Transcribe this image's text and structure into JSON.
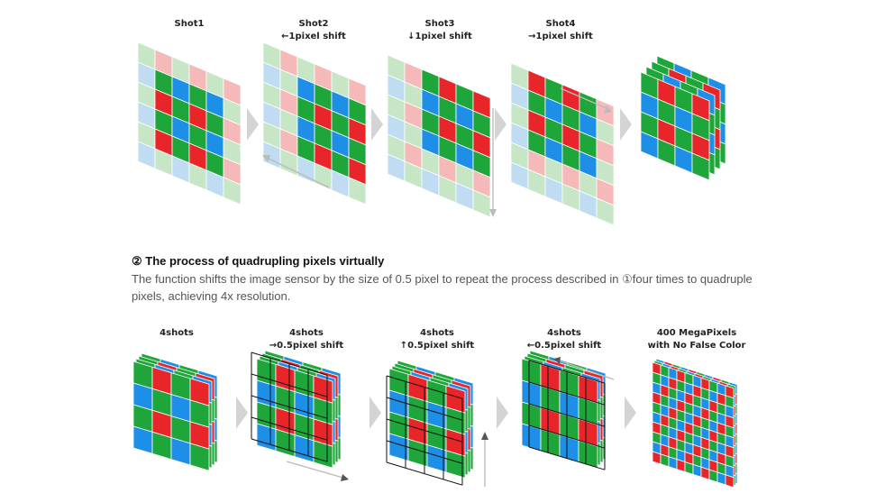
{
  "top_row": {
    "panels": [
      {
        "title": "Shot1",
        "subtitle": ""
      },
      {
        "title": "Shot2",
        "subtitle": "←1pixel shift"
      },
      {
        "title": "Shot3",
        "subtitle": "↓1pixel shift"
      },
      {
        "title": "Shot4",
        "subtitle": "→1pixel shift"
      },
      {
        "title": "",
        "subtitle": ""
      }
    ]
  },
  "description": {
    "heading": "② The process of quadrupling pixels virtually",
    "body": "The function shifts the image sensor by the size of 0.5 pixel to repeat the process described in ①four times to quadruple pixels, achieving 4x resolution."
  },
  "bottom_row": {
    "panels": [
      {
        "title": "4shots",
        "subtitle": ""
      },
      {
        "title": "4shots",
        "subtitle": "→0.5pixel shift"
      },
      {
        "title": "4shots",
        "subtitle": "↑0.5pixel shift"
      },
      {
        "title": "4shots",
        "subtitle": "←0.5pixel shift"
      },
      {
        "title": "400 MegaPixels",
        "subtitle": "with No False Color"
      }
    ]
  },
  "colors": {
    "red": "#e8262a",
    "green": "#1fa63a",
    "blue": "#1e8fe6",
    "light_red": "#f6b9b9",
    "light_green": "#c6e6c6",
    "light_blue": "#bfdcf3",
    "arrow": "#d4d4d4",
    "grid_line": "#111111"
  }
}
